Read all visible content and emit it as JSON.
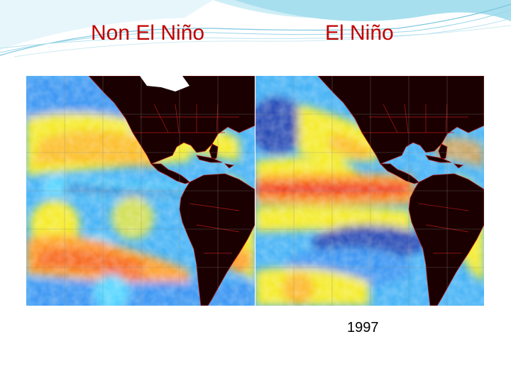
{
  "slide": {
    "title_left": "Non El Niño",
    "title_right": "El Niño",
    "caption_year": "1997"
  },
  "maps": [
    {
      "condition": "non-el-nino",
      "equatorial_anomaly": "cool"
    },
    {
      "condition": "el-nino",
      "equatorial_anomaly": "warm"
    }
  ],
  "colors": {
    "title": "#c00000",
    "land": "#1a0000",
    "borders": "#b01818",
    "deep_blue": "#1f3fb0",
    "blue": "#2f8ff2",
    "cyan": "#4bd3ff",
    "yellow": "#f4ea1e",
    "orange": "#ff9a1a",
    "red": "#ef2a16",
    "header_teal": "#8fd3e6"
  }
}
